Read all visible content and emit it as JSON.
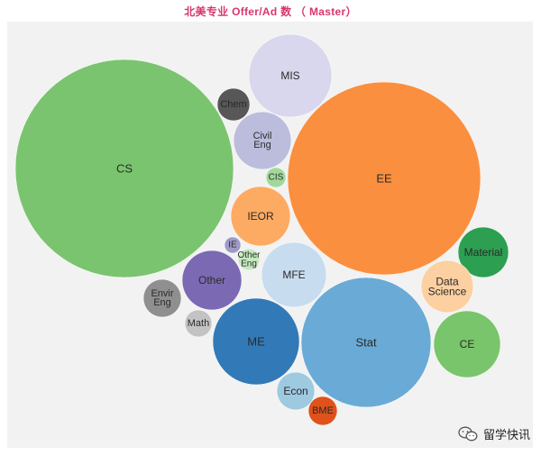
{
  "chart_data": {
    "type": "bubble",
    "title": "北美专业 Offer/Ad 数 （ Master）",
    "series": [
      {
        "label": [
          "CS"
        ],
        "color": "#7bc46f"
      },
      {
        "label": [
          "EE"
        ],
        "color": "#f98f3f"
      },
      {
        "label": [
          "Stat"
        ],
        "color": "#6aaad7"
      },
      {
        "label": [
          "MIS"
        ],
        "color": "#d9d7ee"
      },
      {
        "label": [
          "ME"
        ],
        "color": "#3279b8"
      },
      {
        "label": [
          "MFE"
        ],
        "color": "#c8dcef"
      },
      {
        "label": [
          "CE"
        ],
        "color": "#79c56c"
      },
      {
        "label": [
          "IEOR"
        ],
        "color": "#fdaa63"
      },
      {
        "label": [
          "Other"
        ],
        "color": "#7b6ab3"
      },
      {
        "label": [
          "Civil",
          "Eng"
        ],
        "color": "#bcbddc"
      },
      {
        "label": [
          "Material"
        ],
        "color": "#2ca050"
      },
      {
        "label": [
          "Data",
          "Science"
        ],
        "color": "#fdd0a2"
      },
      {
        "label": [
          "Envir",
          "Eng"
        ],
        "color": "#8f8f8f"
      },
      {
        "label": [
          "Econ"
        ],
        "color": "#9ecae1"
      },
      {
        "label": [
          "Chem"
        ],
        "color": "#575757"
      },
      {
        "label": [
          "BME"
        ],
        "color": "#e0521b"
      },
      {
        "label": [
          "Math"
        ],
        "color": "#c3c3c3"
      },
      {
        "label": [
          "Other",
          "Eng"
        ],
        "color": "#c7e9c0"
      },
      {
        "label": [
          "IE"
        ],
        "color": "#9e9ac8"
      },
      {
        "label": [
          "CIS"
        ],
        "color": "#a1d99b"
      }
    ]
  },
  "watermark": {
    "text": "留学快讯"
  }
}
